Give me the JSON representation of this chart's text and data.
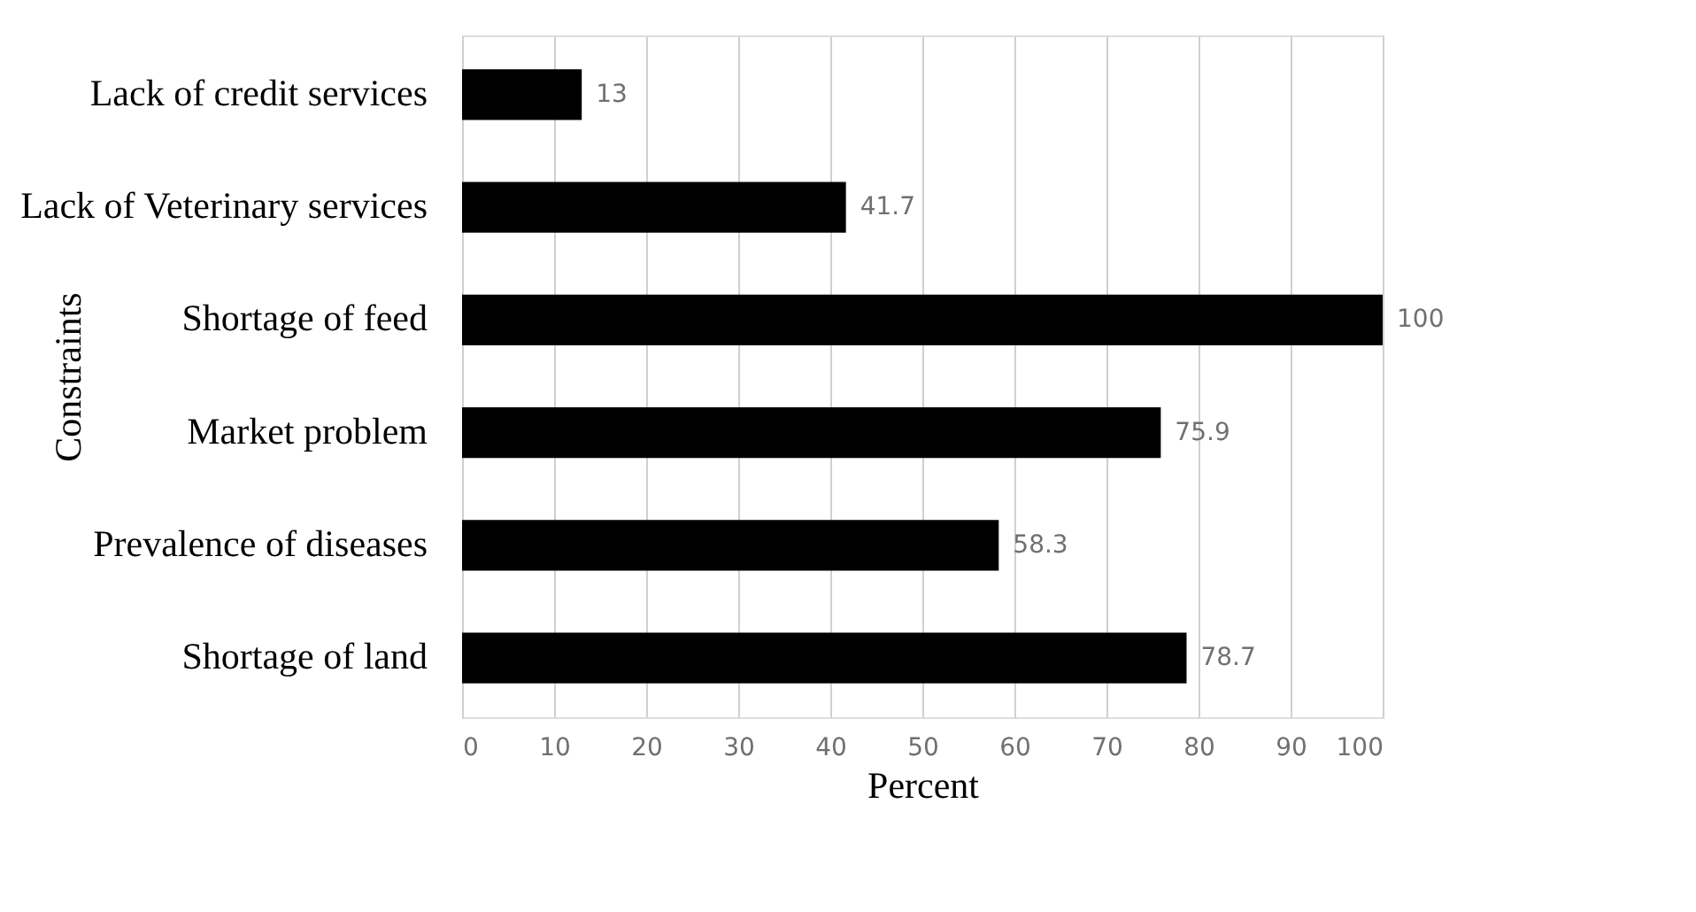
{
  "chart_data": {
    "type": "bar",
    "orientation": "horizontal",
    "categories": [
      "Lack of credit services",
      "Lack of Veterinary services",
      "Shortage of feed",
      "Market problem",
      "Prevalence of diseases",
      "Shortage of land"
    ],
    "values": [
      13,
      41.7,
      100,
      75.9,
      58.3,
      78.7
    ],
    "color": "#000000",
    "xlabel": "Percent",
    "ylabel": "Constraints",
    "xlim": [
      0,
      100
    ],
    "xticks": [
      0,
      10,
      20,
      30,
      40,
      50,
      60,
      70,
      80,
      90,
      100
    ],
    "grid": "x",
    "data_labels": true
  }
}
